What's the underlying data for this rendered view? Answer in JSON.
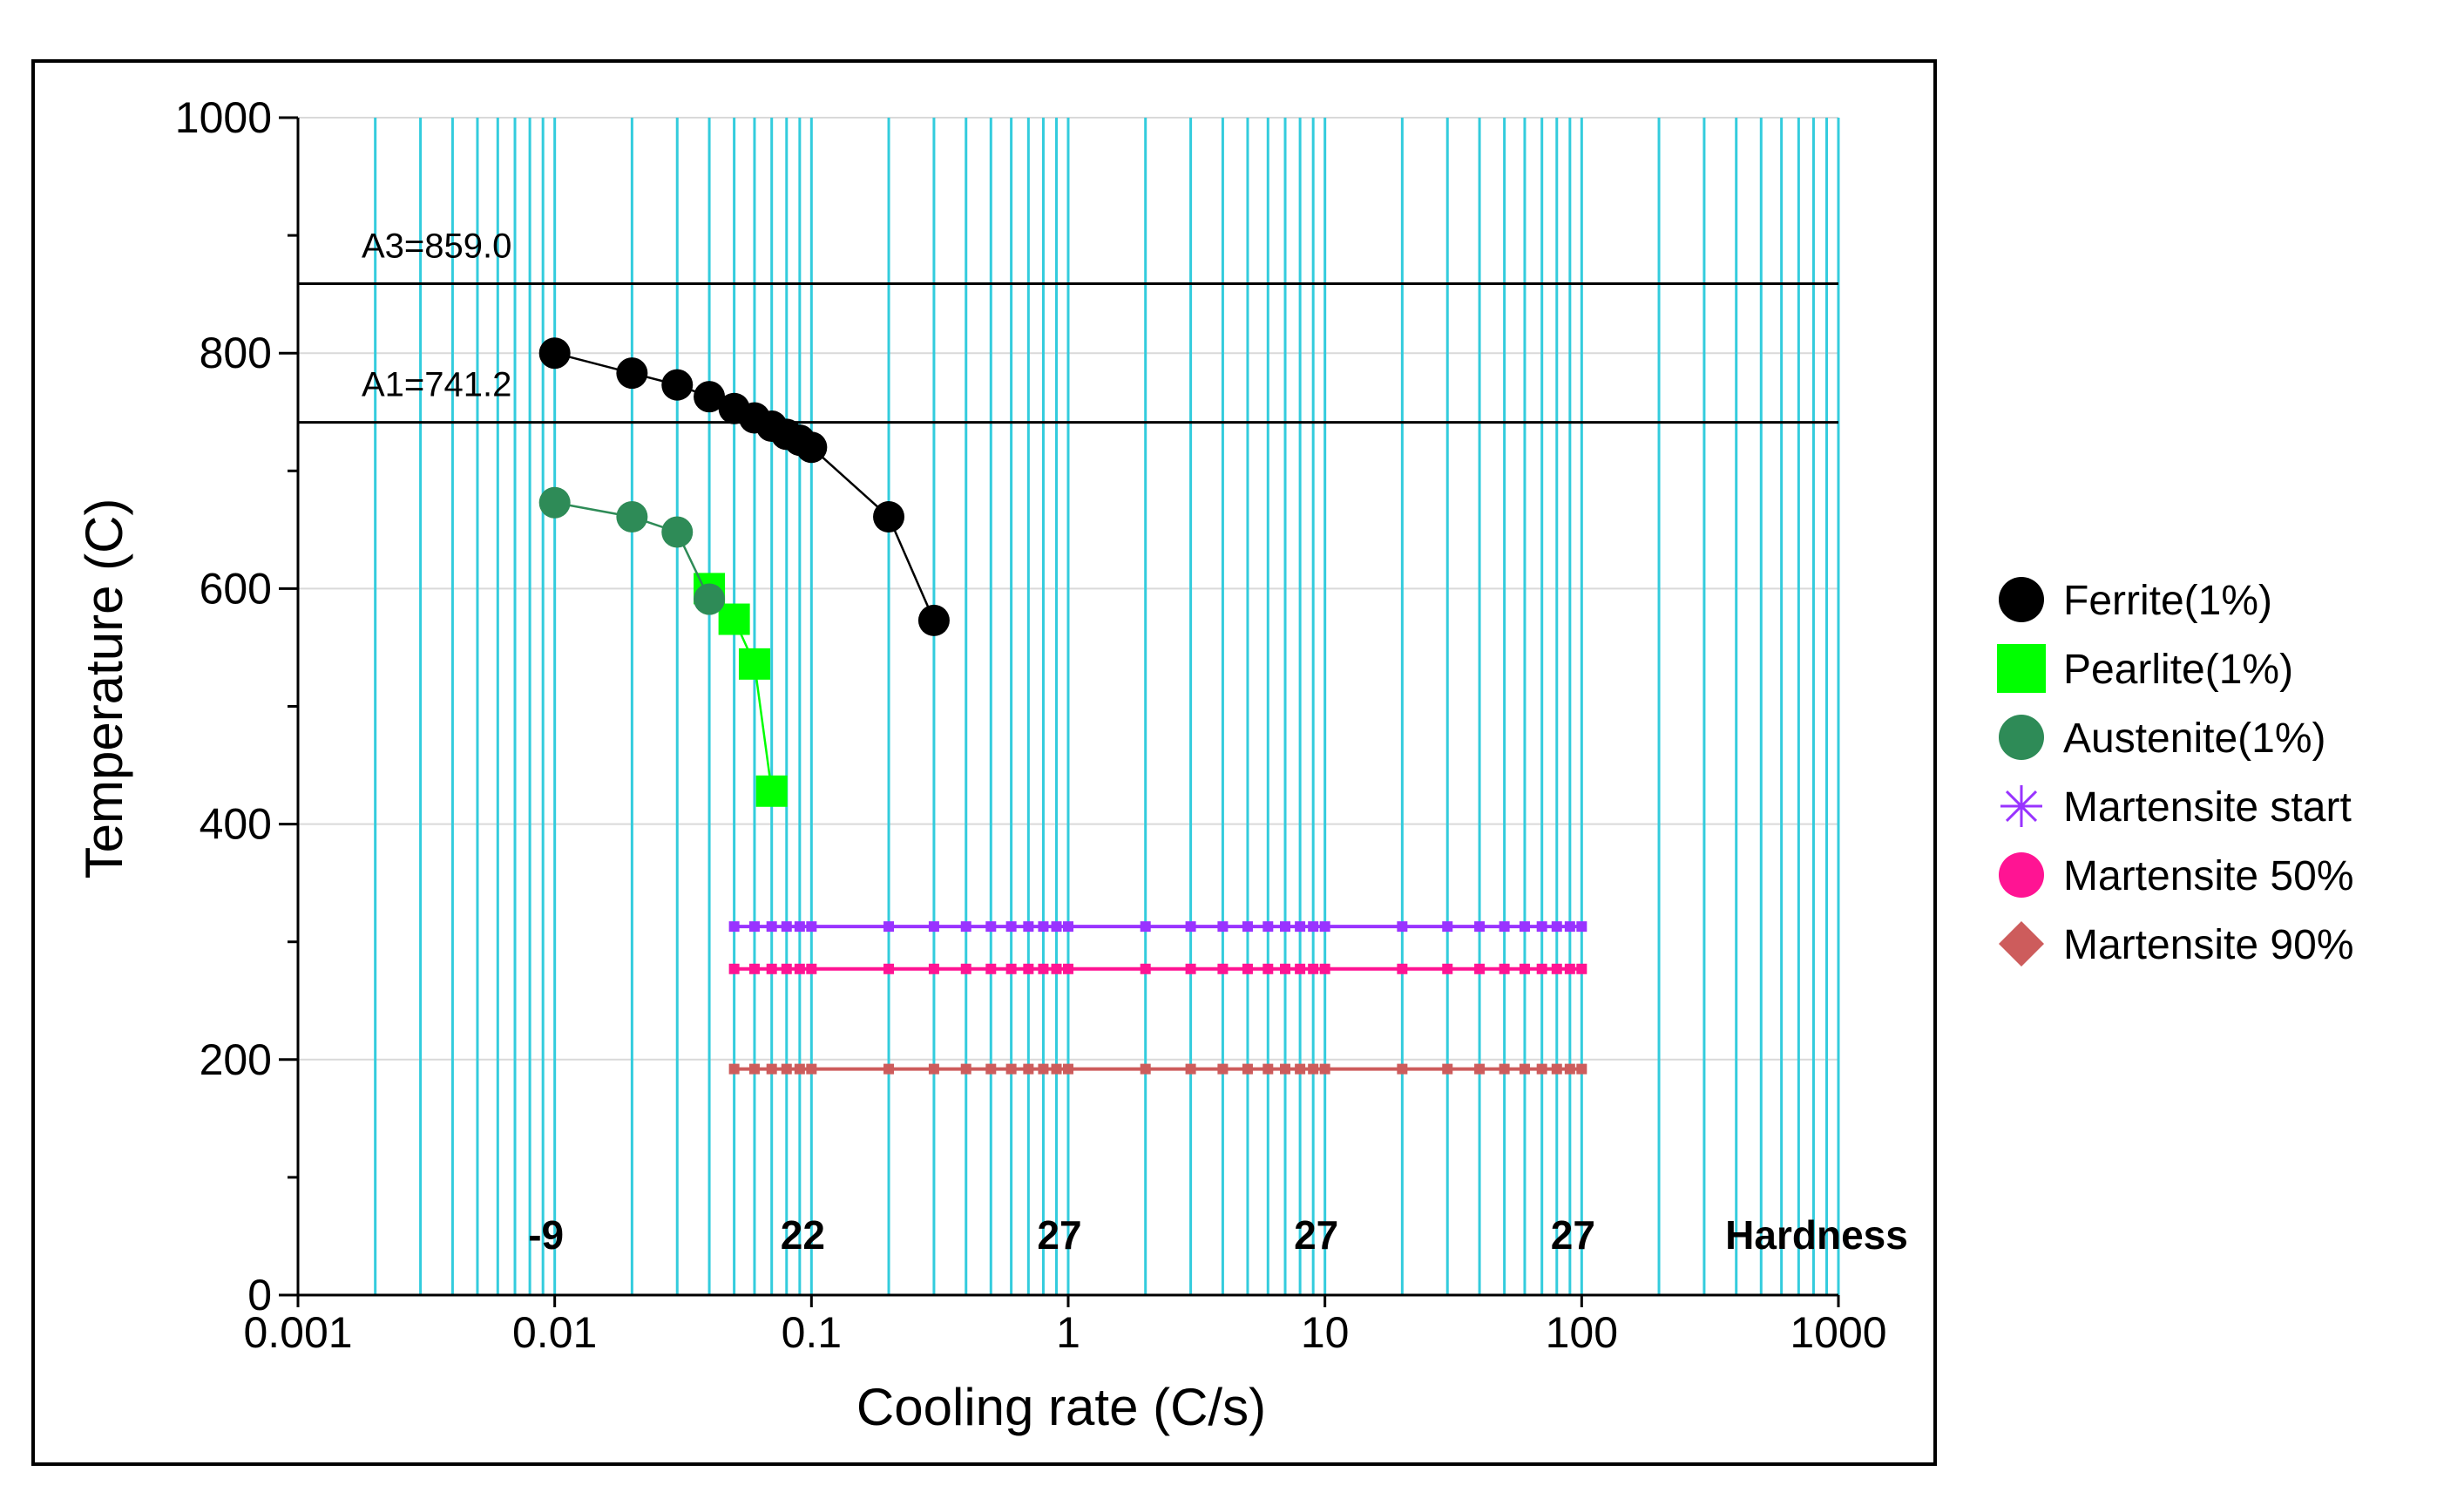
{
  "chart_data": {
    "type": "line",
    "x_scale": "log",
    "xlabel": "Cooling rate (C/s)",
    "ylabel": "Temperature (C)",
    "xlim": [
      0.001,
      1000
    ],
    "ylim": [
      0,
      1000
    ],
    "x_tick_labels": [
      "0.001",
      "0.01",
      "0.1",
      "1",
      "10",
      "100",
      "1000"
    ],
    "y_tick_labels": [
      "0",
      "200",
      "400",
      "600",
      "800",
      "1000"
    ],
    "reference_lines": [
      {
        "label": "A3=859.0",
        "y": 859.0
      },
      {
        "label": "A1=741.2",
        "y": 741.2
      }
    ],
    "series": [
      {
        "name": "Ferrite(1%)",
        "color": "#000000",
        "marker": "circle",
        "x": [
          0.01,
          0.02,
          0.03,
          0.04,
          0.05,
          0.06,
          0.07,
          0.08,
          0.09,
          0.1,
          0.2,
          0.3
        ],
        "y": [
          800,
          783,
          773,
          763,
          753,
          745,
          738,
          731,
          726,
          720,
          661,
          573
        ]
      },
      {
        "name": "Pearlite(1%)",
        "color": "#00ff00",
        "marker": "square",
        "x": [
          0.04,
          0.05,
          0.06,
          0.07
        ],
        "y": [
          600,
          574,
          536,
          428
        ]
      },
      {
        "name": "Austenite(1%)",
        "color": "#2e8b57",
        "marker": "circle",
        "x": [
          0.01,
          0.02,
          0.03,
          0.04
        ],
        "y": [
          673,
          661,
          648,
          591
        ]
      },
      {
        "name": "Martensite start",
        "color": "#9933ff",
        "marker": "star",
        "x": [
          0.05,
          0.06,
          0.07,
          0.08,
          0.09,
          0.1,
          0.2,
          0.3,
          0.4,
          0.5,
          0.6,
          0.7,
          0.8,
          0.9,
          1,
          2,
          3,
          4,
          5,
          6,
          7,
          8,
          9,
          10,
          20,
          30,
          40,
          50,
          60,
          70,
          80,
          90,
          100
        ],
        "y": [
          313,
          313,
          313,
          313,
          313,
          313,
          313,
          313,
          313,
          313,
          313,
          313,
          313,
          313,
          313,
          313,
          313,
          313,
          313,
          313,
          313,
          313,
          313,
          313,
          313,
          313,
          313,
          313,
          313,
          313,
          313,
          313,
          313
        ]
      },
      {
        "name": "Martensite 50%",
        "color": "#ff1493",
        "marker": "circle",
        "x": [
          0.05,
          0.06,
          0.07,
          0.08,
          0.09,
          0.1,
          0.2,
          0.3,
          0.4,
          0.5,
          0.6,
          0.7,
          0.8,
          0.9,
          1,
          2,
          3,
          4,
          5,
          6,
          7,
          8,
          9,
          10,
          20,
          30,
          40,
          50,
          60,
          70,
          80,
          90,
          100
        ],
        "y": [
          277,
          277,
          277,
          277,
          277,
          277,
          277,
          277,
          277,
          277,
          277,
          277,
          277,
          277,
          277,
          277,
          277,
          277,
          277,
          277,
          277,
          277,
          277,
          277,
          277,
          277,
          277,
          277,
          277,
          277,
          277,
          277,
          277
        ]
      },
      {
        "name": "Martensite 90%",
        "color": "#cd5c5c",
        "marker": "diamond",
        "x": [
          0.05,
          0.06,
          0.07,
          0.08,
          0.09,
          0.1,
          0.2,
          0.3,
          0.4,
          0.5,
          0.6,
          0.7,
          0.8,
          0.9,
          1,
          2,
          3,
          4,
          5,
          6,
          7,
          8,
          9,
          10,
          20,
          30,
          40,
          50,
          60,
          70,
          80,
          90,
          100
        ],
        "y": [
          192,
          192,
          192,
          192,
          192,
          192,
          192,
          192,
          192,
          192,
          192,
          192,
          192,
          192,
          192,
          192,
          192,
          192,
          192,
          192,
          192,
          192,
          192,
          192,
          192,
          192,
          192,
          192,
          192,
          192,
          192,
          192,
          192
        ]
      }
    ],
    "hardness": {
      "label": "Hardness",
      "entries": [
        {
          "x": 0.01,
          "value": "-9"
        },
        {
          "x": 0.1,
          "value": "22"
        },
        {
          "x": 1,
          "value": "27"
        },
        {
          "x": 10,
          "value": "27"
        },
        {
          "x": 100,
          "value": "27"
        }
      ]
    },
    "colors": {
      "grid_vertical": "#33ccdd",
      "grid_horizontal": "#d9d9d9",
      "reference_line": "#000000"
    },
    "legend_position": "right"
  }
}
